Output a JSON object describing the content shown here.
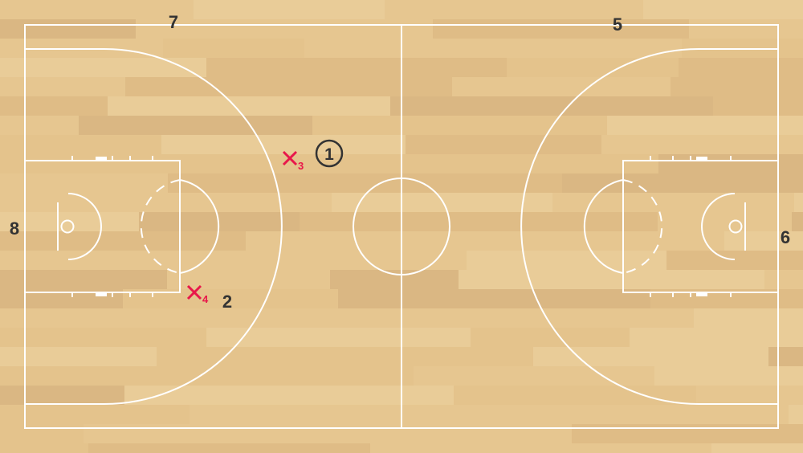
{
  "court": {
    "floor_colors": [
      "#e6c690",
      "#dfbc86",
      "#e9cc98",
      "#dab783",
      "#e4c38c"
    ],
    "line_color": "#ffffff",
    "marker_color": "#333333",
    "defender_color": "#e8174a"
  },
  "players": {
    "ball_handler": {
      "label": "1"
    },
    "p2": {
      "label": "2"
    },
    "p5": {
      "label": "5"
    },
    "p6": {
      "label": "6"
    },
    "p7": {
      "label": "7"
    },
    "p8": {
      "label": "8"
    }
  },
  "defenders": {
    "x3": {
      "mark": "×",
      "sub": "3"
    },
    "x4": {
      "mark": "×",
      "sub": "4"
    }
  }
}
